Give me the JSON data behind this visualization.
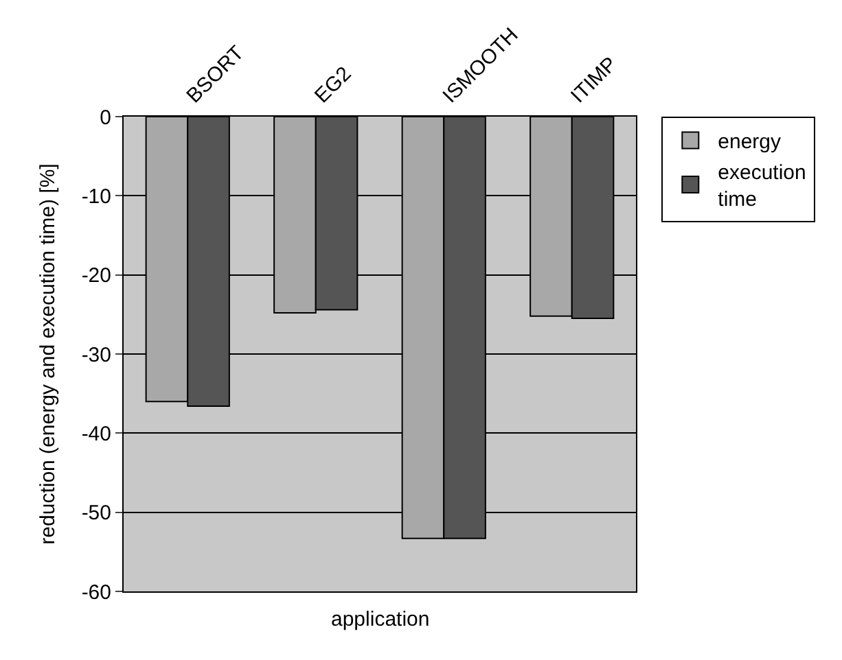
{
  "chart_data": {
    "type": "bar",
    "xlabel": "application",
    "ylabel": "reduction (energy and execution time) [%]",
    "categories": [
      "BSORT",
      "EG2",
      "ISMOOTH",
      "ITIMP"
    ],
    "series": [
      {
        "name": "energy",
        "color": "#a8a8a8",
        "values": [
          -36,
          -24.8,
          -53.3,
          -25.2
        ]
      },
      {
        "name": "execution time",
        "color": "#555555",
        "values": [
          -36.6,
          -24.4,
          -53.3,
          -25.5
        ]
      }
    ],
    "ylim": [
      -60,
      0
    ],
    "yticks": [
      0,
      -10,
      -20,
      -30,
      -40,
      -50,
      -60
    ],
    "grid": "y",
    "legend": "top right"
  }
}
